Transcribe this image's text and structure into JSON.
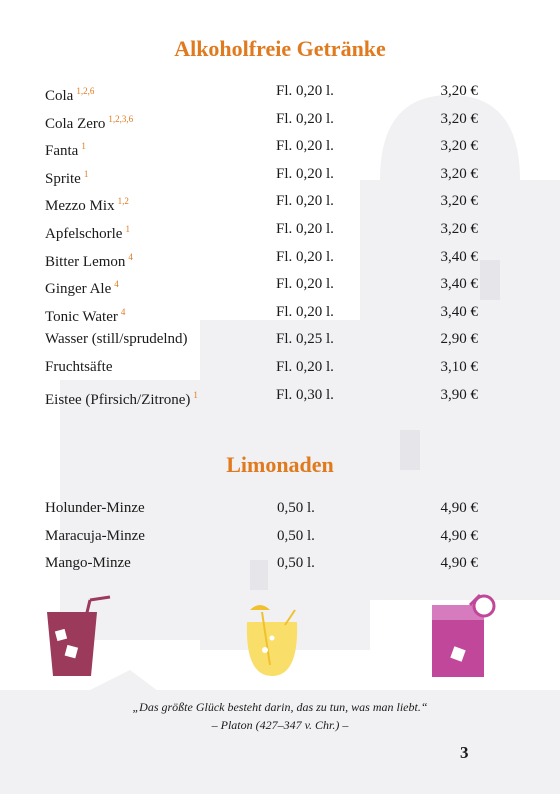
{
  "title": "Alkoholfreie Getränke",
  "drinks": [
    {
      "name": "Cola",
      "notes": "1,2,6",
      "size": "Fl. 0,20 l.",
      "price": "3,20 €"
    },
    {
      "name": "Cola Zero",
      "notes": "1,2,3,6",
      "size": "Fl. 0,20 l.",
      "price": "3,20 €"
    },
    {
      "name": "Fanta",
      "notes": "1",
      "size": "Fl. 0,20 l.",
      "price": "3,20 €"
    },
    {
      "name": "Sprite",
      "notes": "1",
      "size": "Fl. 0,20 l.",
      "price": "3,20 €"
    },
    {
      "name": "Mezzo Mix",
      "notes": "1,2",
      "size": "Fl. 0,20 l.",
      "price": "3,20 €"
    },
    {
      "name": "Apfelschorle",
      "notes": "1",
      "size": "Fl. 0,20 l.",
      "price": "3,20 €"
    },
    {
      "name": "Bitter Lemon",
      "notes": "4",
      "size": "Fl. 0,20 l.",
      "price": "3,40 €"
    },
    {
      "name": "Ginger Ale",
      "notes": "4",
      "size": "Fl. 0,20 l.",
      "price": "3,40 €"
    },
    {
      "name": "Tonic Water",
      "notes": "4",
      "size": "Fl. 0,20 l.",
      "price": "3,40 €"
    },
    {
      "name": "Wasser (still/sprudelnd)",
      "size": "Fl. 0,25 l.",
      "price": "2,90 €"
    },
    {
      "name": "Fruchtsäfte",
      "size": "Fl. 0,20 l.",
      "price": "3,10 €"
    },
    {
      "name": "Eistee (Pfirsich/Zitrone)",
      "notes": "1",
      "size": "Fl. 0,30 l.",
      "price": "3,90 €"
    }
  ],
  "lemonade": {
    "title": "Limonaden",
    "items": [
      {
        "name": "Holunder-Minze",
        "size": "0,50 l.",
        "price": "4,90 €"
      },
      {
        "name": "Maracuja-Minze",
        "size": "0,50 l.",
        "price": "4,90 €"
      },
      {
        "name": "Mango-Minze",
        "size": "0,50 l.",
        "price": "4,90 €"
      }
    ]
  },
  "quote": {
    "text": "„Das größte Glück besteht darin, das zu tun, was man liebt.“",
    "author": "– Platon (427–347 v. Chr.) –"
  },
  "page_number": "3"
}
